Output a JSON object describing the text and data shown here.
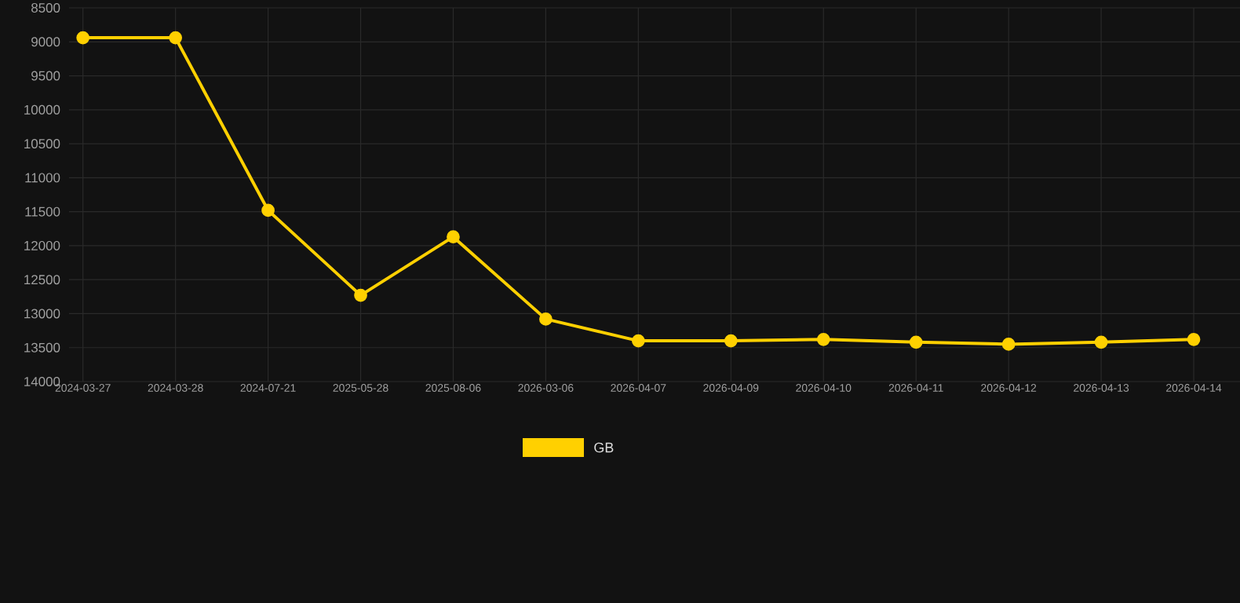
{
  "chart_data": {
    "type": "line",
    "categories": [
      "2024-03-27",
      "2024-03-28",
      "2024-07-21",
      "2025-05-28",
      "2025-08-06",
      "2026-03-06",
      "2026-04-07",
      "2026-04-09",
      "2026-04-10",
      "2026-04-11",
      "2026-04-12",
      "2026-04-13",
      "2026-04-14"
    ],
    "series": [
      {
        "name": "GB",
        "color": "#ffd000",
        "values": [
          8940,
          8940,
          11480,
          12730,
          11870,
          13080,
          13400,
          13400,
          13380,
          13420,
          13450,
          13420,
          13380
        ]
      }
    ],
    "ylim": [
      14000,
      8500
    ],
    "yticks": [
      8500,
      9000,
      9500,
      10000,
      10500,
      11000,
      11500,
      12000,
      12500,
      13000,
      13500,
      14000
    ],
    "grid": true,
    "legend": "bottom",
    "marker": "circle",
    "line_style": "solid"
  }
}
